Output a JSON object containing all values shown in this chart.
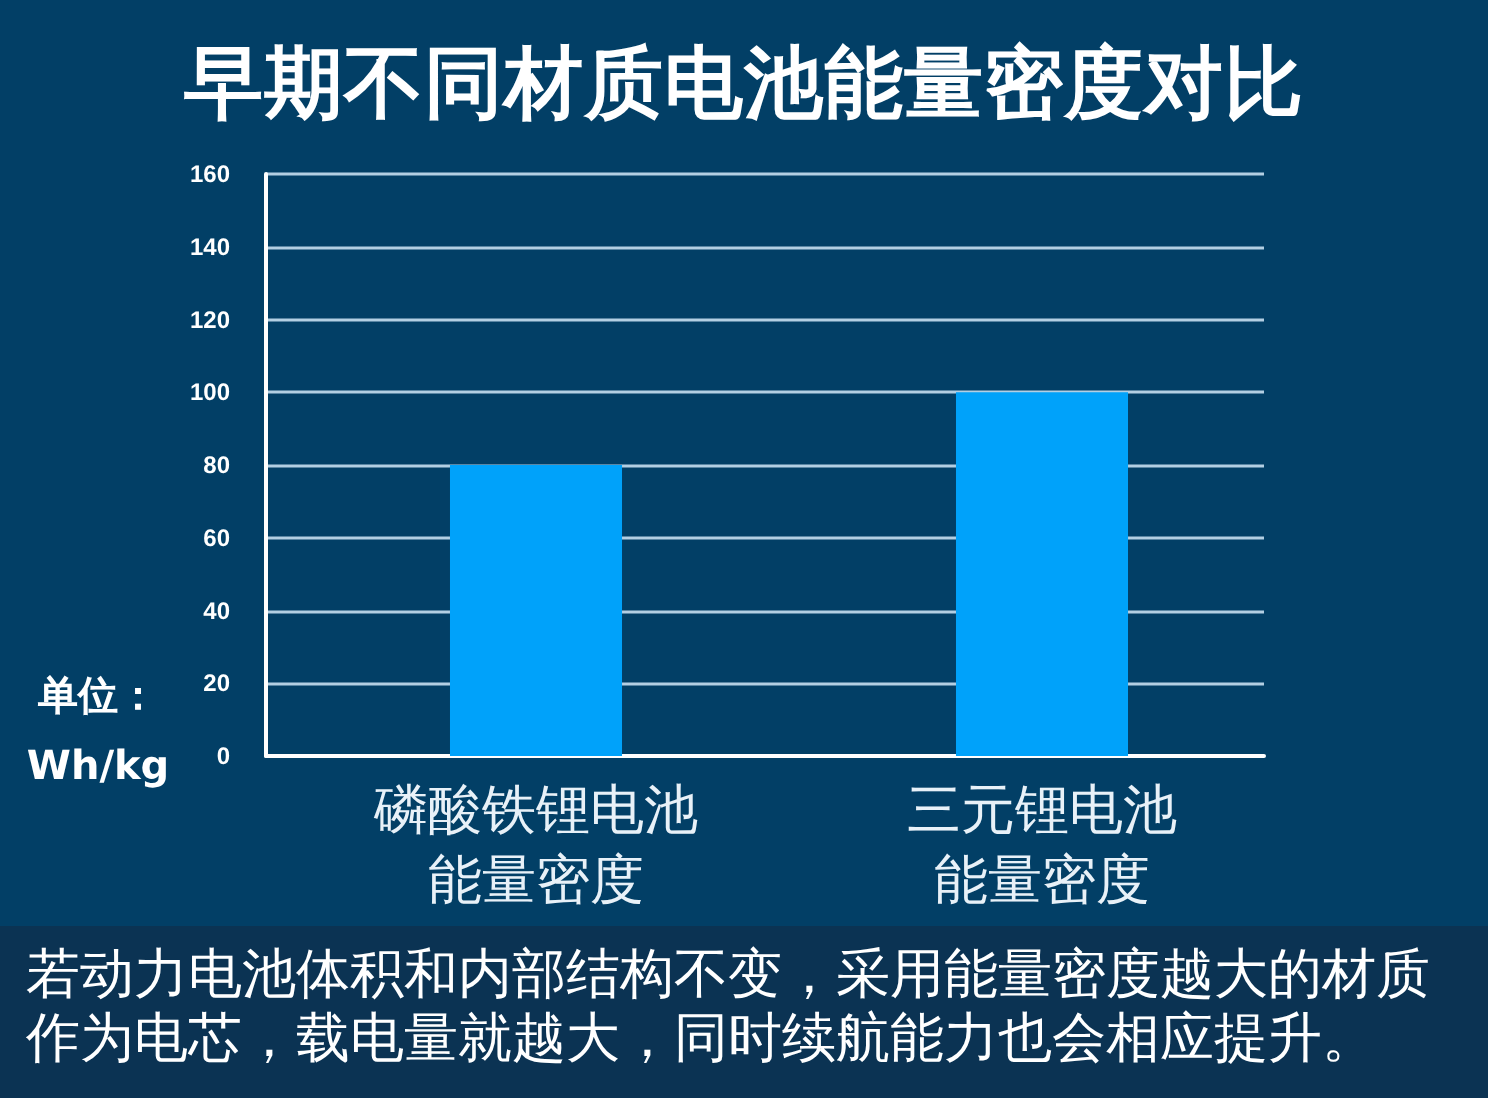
{
  "chart_data": {
    "type": "bar",
    "title": "早期不同材质电池能量密度对比",
    "ylabel": "单位：\nWh/kg",
    "categories": [
      "磷酸铁锂电池能量密度",
      "三元锂电池能量密度"
    ],
    "values": [
      80,
      100
    ],
    "color": "#00a2fa",
    "ylim": [
      0,
      160
    ],
    "yticks": [
      0,
      20,
      40,
      60,
      80,
      100,
      120,
      140,
      160
    ],
    "grid": "y",
    "annotations": [
      "若动力电池体积和内部结构不变，采用能量密度越大的材质作为电芯，载电量就越大，同时续航能力也会相应提升。"
    ]
  }
}
